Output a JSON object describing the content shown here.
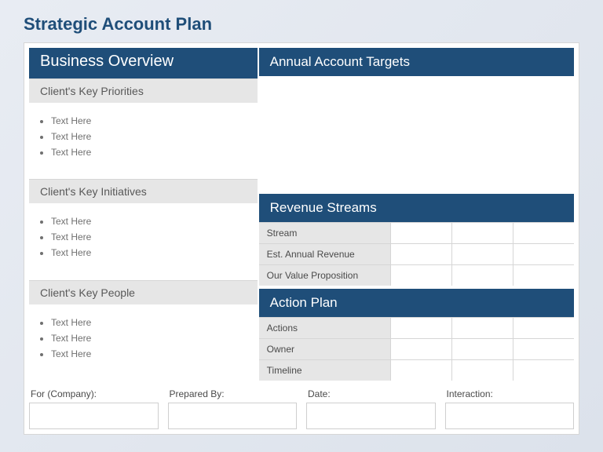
{
  "title": "Strategic Account Plan",
  "left": {
    "header": "Business Overview",
    "sections": [
      {
        "label": "Client's Key Priorities",
        "bullets": [
          "Text Here",
          "Text Here",
          "Text Here"
        ]
      },
      {
        "label": "Client's Key Initiatives",
        "bullets": [
          "Text Here",
          "Text Here",
          "Text Here"
        ]
      },
      {
        "label": "Client's Key People",
        "bullets": [
          "Text Here",
          "Text Here",
          "Text Here"
        ]
      }
    ]
  },
  "right": {
    "targets_header": "Annual Account Targets",
    "revenue": {
      "header": "Revenue Streams",
      "rows": [
        "Stream",
        "Est. Annual Revenue",
        "Our Value Proposition"
      ]
    },
    "action": {
      "header": "Action Plan",
      "rows": [
        "Actions",
        "Owner",
        "Timeline"
      ]
    }
  },
  "footer": {
    "fields": [
      "For (Company):",
      "Prepared By:",
      "Date:",
      "Interaction:"
    ]
  },
  "colors": {
    "primary": "#1f4e79",
    "gray_fill": "#e6e6e6",
    "border": "#d6d6d6",
    "text_muted": "#707070"
  }
}
